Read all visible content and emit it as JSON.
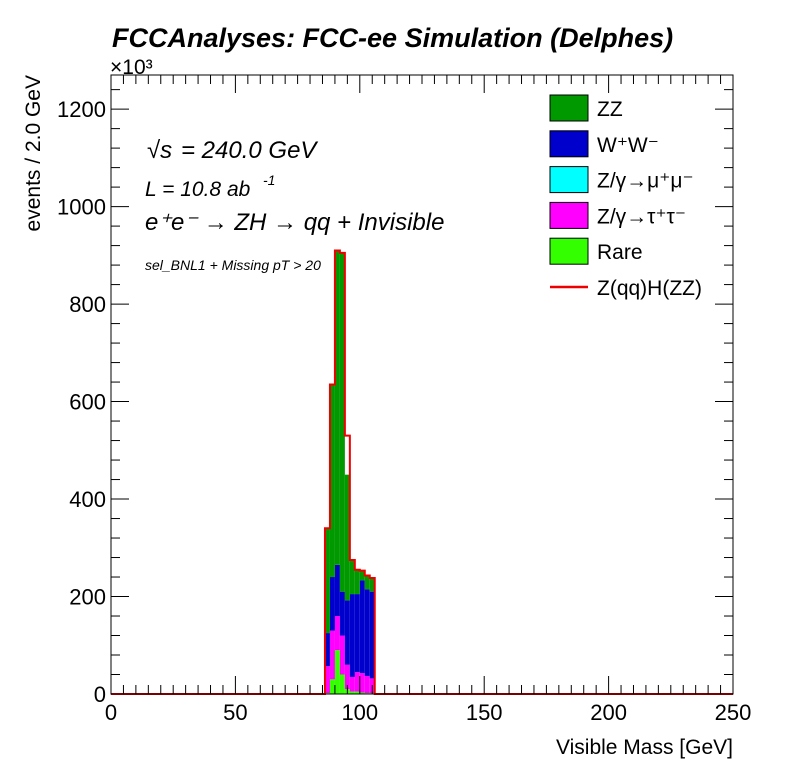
{
  "chart_data": {
    "type": "bar",
    "stacked": true,
    "title": "FCCAnalyses: FCC-ee Simulation (Delphes)",
    "xlabel": "Visible Mass [GeV]",
    "ylabel": "events / 2.0 GeV",
    "y_multiplier_label": "×10³",
    "xlim": [
      0,
      250
    ],
    "ylim": [
      0,
      1270
    ],
    "y_unit_scale": 1000,
    "bin_width": 2,
    "x_ticks": [
      "0",
      "50",
      "100",
      "150",
      "200",
      "250"
    ],
    "y_ticks": [
      "0",
      "200",
      "400",
      "600",
      "800",
      "1000",
      "1200"
    ],
    "annotations": {
      "sqrt_s": "= 240.0 GeV",
      "sqrt_symbol": "√s",
      "lumi": "L = 10.8 ab",
      "lumi_exp": "-1",
      "process": "e⁺e⁻ → ZH → qq + Invisible",
      "selection": "sel_BNL1 + Missing pT > 20"
    },
    "bin_edges": [
      86,
      88,
      90,
      92,
      94,
      96,
      98,
      100,
      102,
      104,
      106
    ],
    "series": [
      {
        "name": "Rare",
        "legend": "Rare",
        "color": "#33ff00",
        "values": [
          2,
          30,
          90,
          40,
          10,
          5,
          5,
          3,
          2,
          2
        ]
      },
      {
        "name": "Z/γ→τ⁺τ⁻",
        "legend": "Z/γ→τ⁺τ⁻",
        "color": "#ff00ff",
        "values": [
          55,
          100,
          70,
          80,
          50,
          30,
          40,
          40,
          35,
          30
        ]
      },
      {
        "name": "Z/γ→μ⁺μ⁻",
        "legend": "Z/γ→μ⁺μ⁻",
        "color": "#00ffff",
        "values": [
          0,
          0,
          0,
          0,
          0,
          0,
          0,
          0,
          0,
          0
        ]
      },
      {
        "name": "W⁺W⁻",
        "legend": "W⁺W⁻",
        "color": "#0000cc",
        "values": [
          68,
          110,
          105,
          90,
          132,
          170,
          160,
          190,
          178,
          178
        ]
      },
      {
        "name": "ZZ",
        "legend": "ZZ",
        "color": "#009900",
        "values": [
          215,
          395,
          645,
          695,
          258,
          70,
          50,
          20,
          28,
          28
        ]
      }
    ],
    "signal": {
      "name": "Z(qq)H(ZZ)",
      "legend": "Z(qq)H(ZZ)",
      "color": "#ee0000",
      "values": [
        340,
        635,
        910,
        905,
        530,
        275,
        255,
        253,
        243,
        238
      ]
    }
  }
}
